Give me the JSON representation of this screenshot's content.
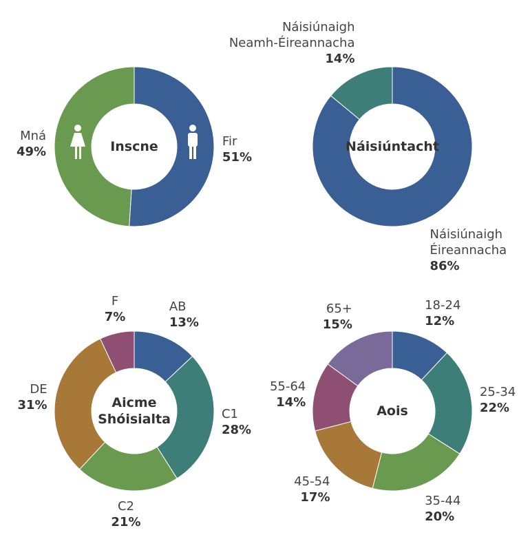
{
  "chart_data": [
    {
      "type": "donut",
      "title": "Inscne",
      "categories": [
        "Fir",
        "Mná"
      ],
      "values": [
        51,
        49
      ],
      "value_labels": [
        "51%",
        "49%"
      ],
      "colors": [
        "#3a5f95",
        "#6a9a4f"
      ]
    },
    {
      "type": "donut",
      "title": "Náisiúntacht",
      "categories": [
        "Náisiúnaigh\nÉireannacha",
        "Náisiúnaigh\nNeamh-Éireannacha"
      ],
      "values": [
        86,
        14
      ],
      "value_labels": [
        "86%",
        "14%"
      ],
      "colors": [
        "#3a5f95",
        "#3d7f78"
      ]
    },
    {
      "type": "donut",
      "title": "Aicme\nShóisialta",
      "categories": [
        "AB",
        "C1",
        "C2",
        "DE",
        "F"
      ],
      "values": [
        13,
        28,
        21,
        31,
        7
      ],
      "value_labels": [
        "13%",
        "28%",
        "21%",
        "31%",
        "7%"
      ],
      "colors": [
        "#3a5f95",
        "#3d7f78",
        "#6a9a4f",
        "#a87838",
        "#8f4f73"
      ]
    },
    {
      "type": "donut",
      "title": "Aois",
      "categories": [
        "18-24",
        "25-34",
        "35-44",
        "45-54",
        "55-64",
        "65+"
      ],
      "values": [
        12,
        22,
        20,
        17,
        14,
        15
      ],
      "value_labels": [
        "12%",
        "22%",
        "20%",
        "17%",
        "14%",
        "15%"
      ],
      "colors": [
        "#3a5f95",
        "#3d7f78",
        "#6a9a4f",
        "#a87838",
        "#8f4f73",
        "#7a6a9a"
      ]
    }
  ]
}
